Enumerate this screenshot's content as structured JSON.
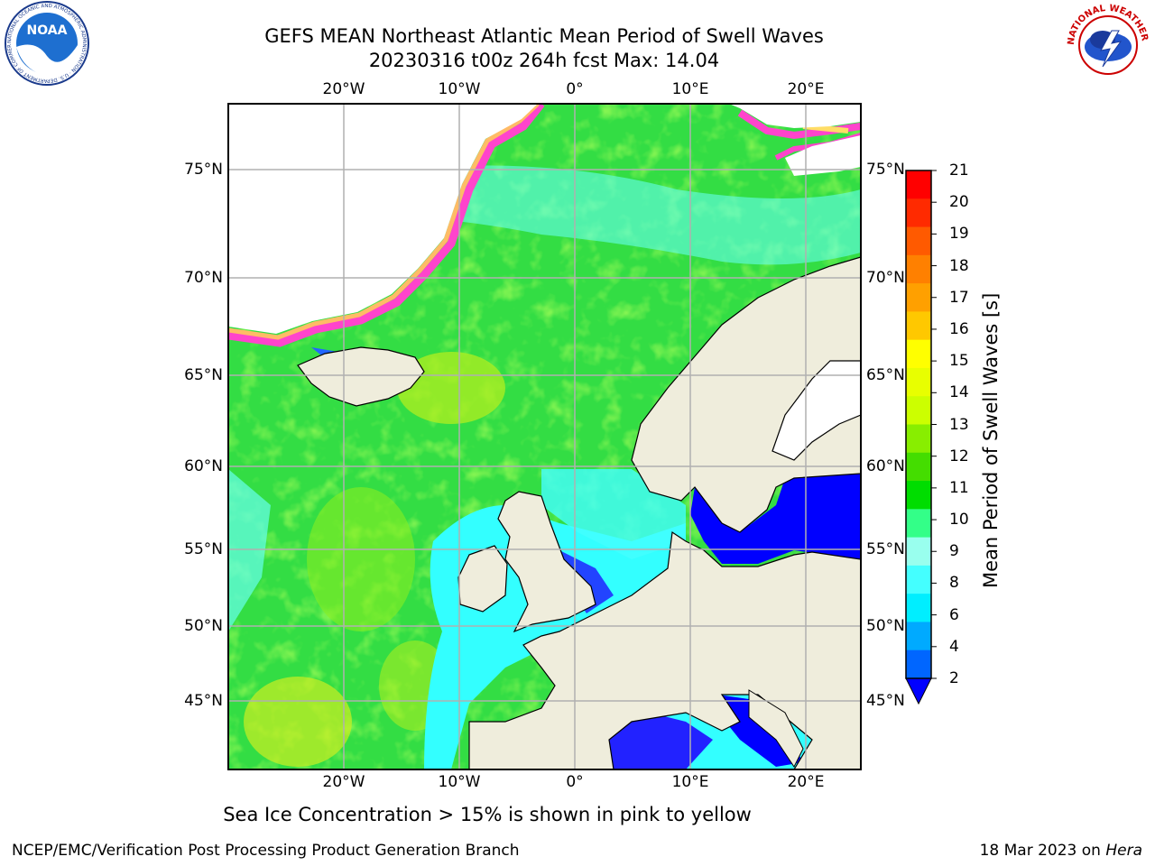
{
  "header": {
    "title_line1": "GEFS MEAN Northeast Atlantic Mean Period of Swell Waves",
    "title_line2": "20230316 t00z 264h fcst   Max: 14.04"
  },
  "logos": {
    "noaa": {
      "text": "NOAA",
      "ring": "NATIONAL OCEANIC AND ATMOSPHERIC ADMINISTRATION · U.S. DEPARTMENT OF COMMERCE"
    },
    "nws": {
      "ring": "NATIONAL WEATHER SERVICE"
    }
  },
  "map": {
    "lon_ticks": [
      "20°W",
      "10°W",
      "0°",
      "10°E",
      "20°E"
    ],
    "lat_ticks": [
      "75°N",
      "70°N",
      "65°N",
      "60°N",
      "55°N",
      "50°N",
      "45°N"
    ],
    "colors": {
      "land": "#efeddc",
      "ocean_mid": "#33dd33",
      "ocean_shelf": "#33ffff",
      "deep_blue": "#0000ff",
      "ice_pink": "#ff44cc",
      "grid": "#b0b0b0"
    }
  },
  "colorbar": {
    "label": "Mean Period of Swell Waves [s]",
    "ticks": [
      "21",
      "20",
      "19",
      "18",
      "17",
      "16",
      "15",
      "14",
      "13",
      "12",
      "11",
      "10",
      "9",
      "8",
      "6",
      "4",
      "2"
    ],
    "colors": [
      "#ff0000",
      "#ff2a00",
      "#ff5a00",
      "#ff8000",
      "#ffa000",
      "#ffc800",
      "#ffff00",
      "#e8ff00",
      "#ccff00",
      "#88ee00",
      "#44dd00",
      "#00dd00",
      "#33ff88",
      "#99ffee",
      "#44ffff",
      "#00eeff",
      "#00aaff",
      "#0066ff"
    ],
    "extend_color": "#0000ff"
  },
  "notes": {
    "ice": "Sea Ice Concentration > 15% is shown in pink to yellow"
  },
  "footer": {
    "left": "NCEP/EMC/Verification Post Processing Product Generation Branch",
    "date": "18 Mar 2023 on ",
    "host": "Hera"
  }
}
